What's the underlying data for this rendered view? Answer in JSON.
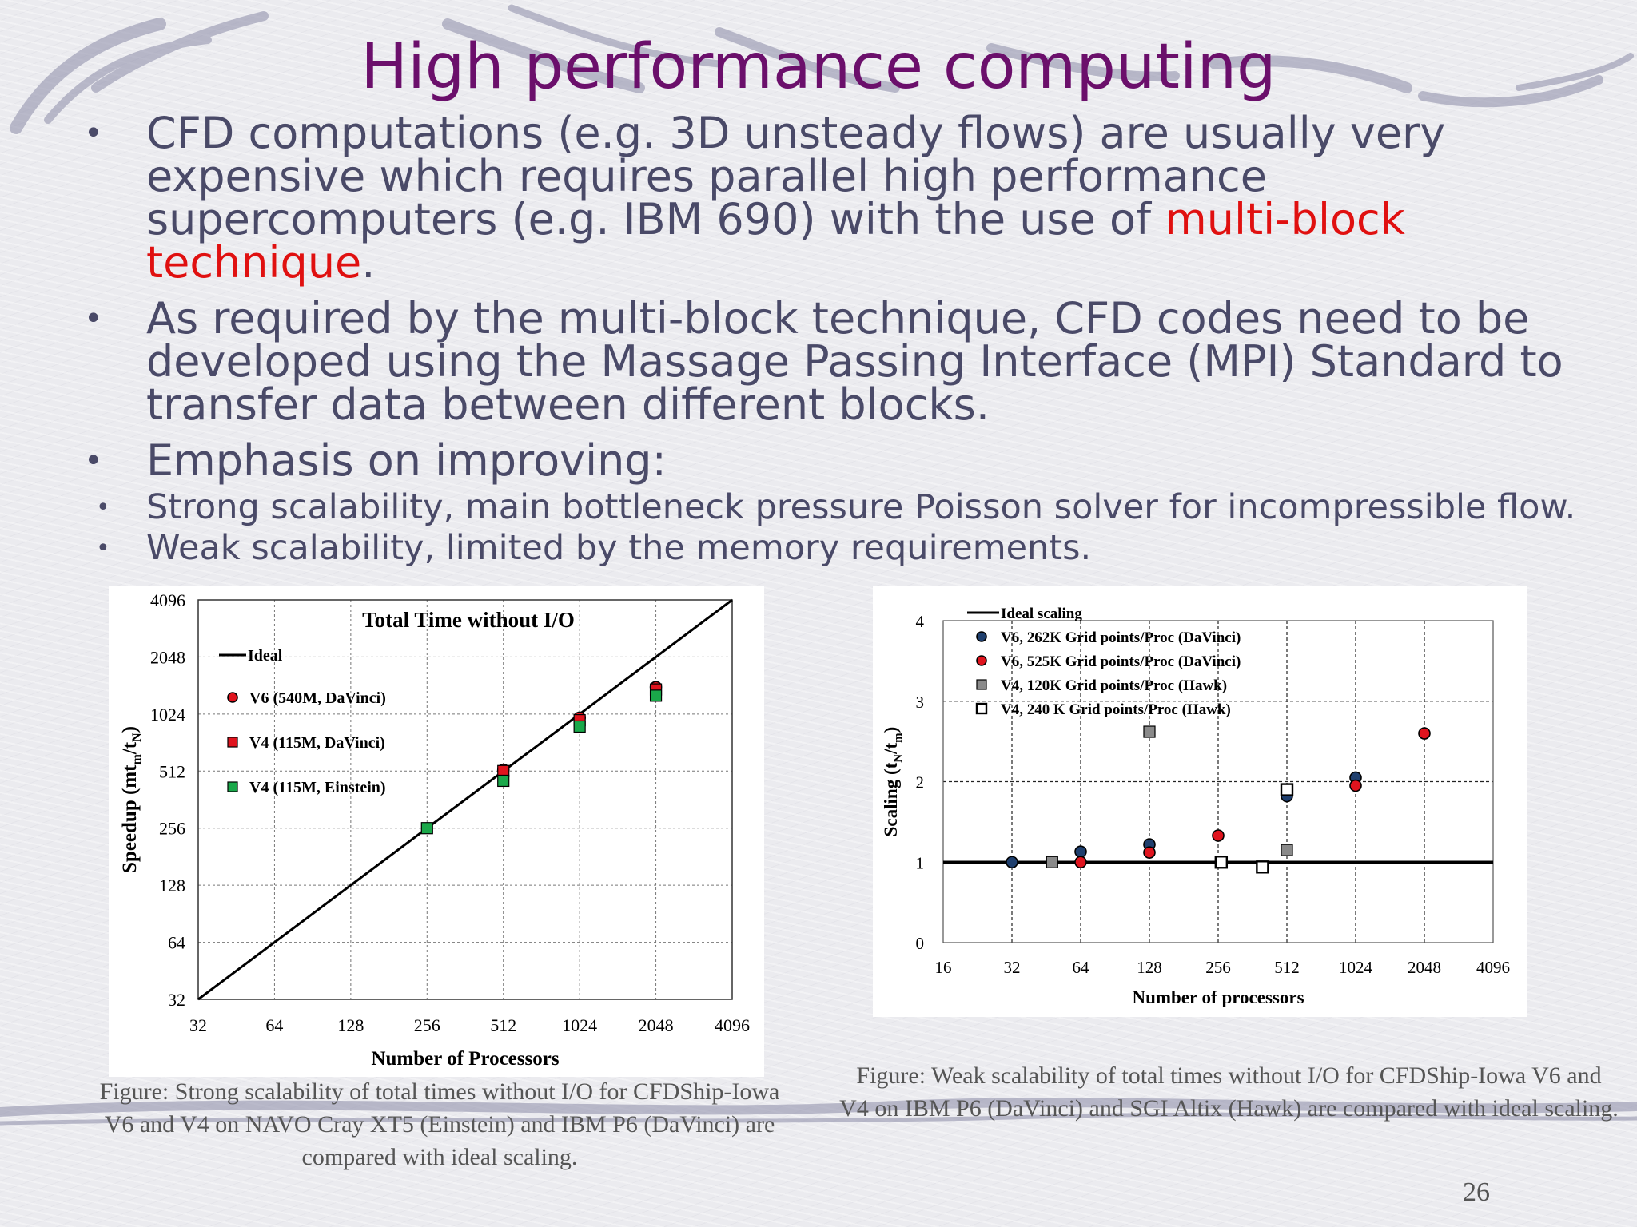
{
  "slide": {
    "title": "High performance computing",
    "page_number": "26",
    "bullets": [
      {
        "pre": "CFD computations (e.g. 3D unsteady flows) are usually very expensive which requires parallel high performance supercomputers (e.g. IBM 690) with the use of ",
        "highlight": "multi-block technique",
        "post": "."
      },
      {
        "text": "As required by the multi-block technique, CFD codes need to be developed using the Massage Passing Interface (MPI) Standard  to transfer data between different blocks."
      },
      {
        "text": "Emphasis on improving:"
      }
    ],
    "sub_bullets": [
      "Strong scalability, main bottleneck pressure Poisson solver for incompressible flow.",
      "Weak scalability, limited by the memory requirements."
    ],
    "captions": {
      "left": "Figure: Strong scalability of total times without I/O for CFDShip-Iowa V6 and V4 on NAVO Cray XT5 (Einstein) and IBM P6 (DaVinci) are compared with ideal scaling.",
      "right": "Figure: Weak scalability of total times without I/O for CFDShip-Iowa V6 and V4 on IBM P6 (DaVinci) and SGI Altix (Hawk) are compared with ideal scaling."
    },
    "colors": {
      "title": "#6b0f6b",
      "text": "#4a4a68",
      "highlight": "#e01010"
    }
  },
  "chart_data": [
    {
      "type": "scatter",
      "title": "Total Time without I/O",
      "xlabel": "Number of Processors",
      "ylabel": "Speedup (mt_m/t_N)",
      "x_scale": "log2",
      "y_scale": "log2",
      "xlim": [
        32,
        4096
      ],
      "ylim": [
        32,
        4096
      ],
      "x_ticks": [
        "32",
        "64",
        "128",
        "256",
        "512",
        "1024",
        "2048",
        "4096"
      ],
      "y_ticks": [
        "32",
        "64",
        "128",
        "256",
        "512",
        "1024",
        "2048",
        "4096"
      ],
      "grid": true,
      "legend_position": "top-left",
      "ideal": {
        "name": "Ideal",
        "points": [
          [
            32,
            32
          ],
          [
            4096,
            4096
          ]
        ]
      },
      "series": [
        {
          "name": "V6 (540M, DaVinci)",
          "marker": "circle",
          "color": "#e0141e",
          "points": [
            [
              512,
              520
            ],
            [
              1024,
              980
            ],
            [
              2048,
              1420
            ]
          ]
        },
        {
          "name": "V4 (115M, DaVinci)",
          "marker": "square",
          "color": "#e0141e",
          "points": [
            [
              512,
              512
            ],
            [
              1024,
              950
            ],
            [
              2048,
              1380
            ]
          ]
        },
        {
          "name": "V4 (115M, Einstein)",
          "marker": "square",
          "color": "#1aa84a",
          "points": [
            [
              256,
              256
            ],
            [
              512,
              455
            ],
            [
              1024,
              880
            ],
            [
              2048,
              1280
            ]
          ]
        }
      ]
    },
    {
      "type": "scatter",
      "xlabel": "Number of processors",
      "ylabel": "Scaling (t_N/t_m)",
      "x_scale": "log2",
      "xlim": [
        16,
        4096
      ],
      "ylim": [
        0,
        4
      ],
      "x_ticks": [
        "16",
        "32",
        "64",
        "128",
        "256",
        "512",
        "1024",
        "2048",
        "4096"
      ],
      "y_ticks": [
        "0",
        "1",
        "2",
        "3",
        "4"
      ],
      "grid": true,
      "legend_position": "top-left",
      "ideal": {
        "name": "Ideal scaling",
        "points": [
          [
            16,
            1
          ],
          [
            4096,
            1
          ]
        ]
      },
      "series": [
        {
          "name": "V6, 262K Grid points/Proc (DaVinci)",
          "marker": "circle",
          "color": "#1f3f6e",
          "points": [
            [
              32,
              1.0
            ],
            [
              64,
              1.13
            ],
            [
              128,
              1.22
            ],
            [
              512,
              1.82
            ],
            [
              1024,
              2.05
            ]
          ]
        },
        {
          "name": "V6, 525K Grid points/Proc (DaVinci)",
          "marker": "circle",
          "color": "#e0141e",
          "points": [
            [
              64,
              1.0
            ],
            [
              128,
              1.12
            ],
            [
              256,
              1.33
            ],
            [
              1024,
              1.95
            ],
            [
              2048,
              2.6
            ]
          ]
        },
        {
          "name": "V4, 120K Grid points/Proc (Hawk)",
          "marker": "square",
          "color": "#8a8a8a",
          "points": [
            [
              48,
              1.0
            ],
            [
              128,
              2.62
            ],
            [
              512,
              1.15
            ]
          ]
        },
        {
          "name": "V4, 240 K Grid points/Proc (Hawk)",
          "marker": "square-open",
          "color": "#ffffff",
          "points": [
            [
              264,
              1.0
            ],
            [
              400,
              0.94
            ],
            [
              512,
              1.9
            ]
          ]
        }
      ]
    }
  ]
}
